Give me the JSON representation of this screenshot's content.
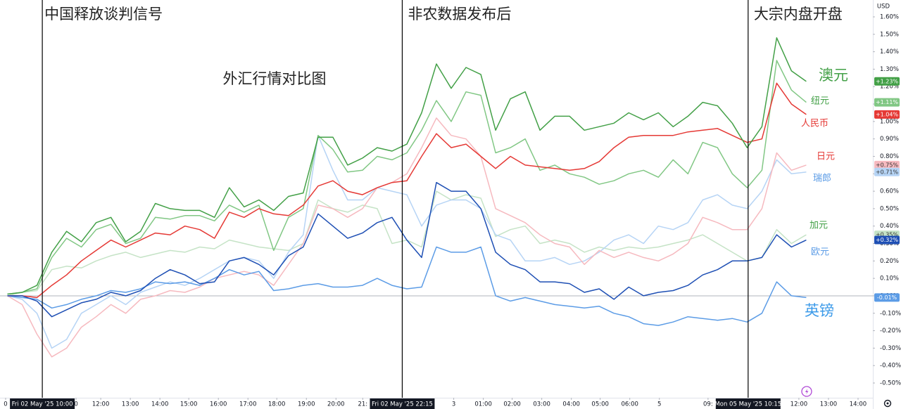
{
  "chart_data": {
    "type": "line",
    "title": "外汇行情对比图",
    "y_unit": "USD",
    "xlim": [
      -0.5,
      58.5
    ],
    "ylim": [
      -0.55,
      1.65
    ],
    "yticks": [
      {
        "value": 1.6,
        "label": "1.60%"
      },
      {
        "value": 1.5,
        "label": "1.50%"
      },
      {
        "value": 1.4,
        "label": "1.40%"
      },
      {
        "value": 1.3,
        "label": "1.30%"
      },
      {
        "value": 1.2,
        "label": "1.20%"
      },
      {
        "value": 1.1,
        "label": "1.10%"
      },
      {
        "value": 1.0,
        "label": "1.00%"
      },
      {
        "value": 0.9,
        "label": "0.90%"
      },
      {
        "value": 0.8,
        "label": "0.80%"
      },
      {
        "value": 0.7,
        "label": "0.70%"
      },
      {
        "value": 0.6,
        "label": "0.60%"
      },
      {
        "value": 0.5,
        "label": "0.50%"
      },
      {
        "value": 0.4,
        "label": "0.40%"
      },
      {
        "value": 0.3,
        "label": "0.30%"
      },
      {
        "value": 0.2,
        "label": "0.20%"
      },
      {
        "value": 0.1,
        "label": "0.10%"
      },
      {
        "value": 0,
        "label": "0.00%"
      },
      {
        "value": -0.1,
        "label": "-0.10%"
      },
      {
        "value": -0.2,
        "label": "-0.20%"
      },
      {
        "value": -0.3,
        "label": "-0.30%"
      },
      {
        "value": -0.4,
        "label": "-0.40%"
      },
      {
        "value": -0.5,
        "label": "-0.50%"
      }
    ],
    "xticks": [
      {
        "value": -0.12,
        "label": "0"
      },
      {
        "value": 4.64,
        "label": "0"
      },
      {
        "value": 6.31,
        "label": "12:00"
      },
      {
        "value": 8.31,
        "label": "13:00"
      },
      {
        "value": 10.31,
        "label": "14:00"
      },
      {
        "value": 12.26,
        "label": "15:00"
      },
      {
        "value": 14.26,
        "label": "16:00"
      },
      {
        "value": 16.26,
        "label": "17:00"
      },
      {
        "value": 18.21,
        "label": "18:00"
      },
      {
        "value": 20.21,
        "label": "19:00"
      },
      {
        "value": 22.21,
        "label": "20:00"
      },
      {
        "value": 24.02,
        "label": "21:"
      },
      {
        "value": 30.17,
        "label": "3"
      },
      {
        "value": 32.17,
        "label": "01:00"
      },
      {
        "value": 34.12,
        "label": "02:00"
      },
      {
        "value": 36.12,
        "label": "03:00"
      },
      {
        "value": 38.12,
        "label": "04:00"
      },
      {
        "value": 40.07,
        "label": "05:00"
      },
      {
        "value": 42.07,
        "label": "06:00"
      },
      {
        "value": 44.07,
        "label": "5"
      },
      {
        "value": 47.36,
        "label": "09:"
      },
      {
        "value": 53.5,
        "label": "12:00"
      },
      {
        "value": 55.5,
        "label": "13:00"
      },
      {
        "value": 57.5,
        "label": "14:00"
      }
    ],
    "events": [
      {
        "x": 2.36,
        "label": "中国释放谈判信号",
        "time": "Fri 02 May '25   10:00"
      },
      {
        "x": 26.69,
        "label": "非农数据发布后",
        "time": "Fri 02 May '25   22:15"
      },
      {
        "x": 50.07,
        "label": "大宗内盘开盘",
        "time": "Mon 05 May '25   10:15"
      }
    ],
    "series": [
      {
        "name": "澳元",
        "color": "#43a047",
        "last_label": "+1.23%",
        "values": [
          0.01,
          0.02,
          0.06,
          0.25,
          0.37,
          0.31,
          0.42,
          0.45,
          0.31,
          0.37,
          0.53,
          0.5,
          0.49,
          0.49,
          0.45,
          0.62,
          0.51,
          0.55,
          0.49,
          0.57,
          0.59,
          0.91,
          0.91,
          0.75,
          0.79,
          0.85,
          0.83,
          0.87,
          1.05,
          1.33,
          1.19,
          1.31,
          1.27,
          0.95,
          1.13,
          1.17,
          0.95,
          1.03,
          1.03,
          0.95,
          0.97,
          0.99,
          1.05,
          1.01,
          1.05,
          0.97,
          1.03,
          1.11,
          1.09,
          0.99,
          0.85,
          0.97,
          1.48,
          1.29,
          1.23
        ]
      },
      {
        "name": "纽元",
        "color": "#81c784",
        "last_label": "+1.11%",
        "values": [
          0.01,
          0.02,
          0.04,
          0.22,
          0.33,
          0.28,
          0.38,
          0.41,
          0.3,
          0.33,
          0.45,
          0.44,
          0.46,
          0.46,
          0.43,
          0.52,
          0.48,
          0.52,
          0.26,
          0.45,
          0.5,
          0.92,
          0.84,
          0.71,
          0.72,
          0.8,
          0.78,
          0.82,
          0.95,
          1.12,
          1.0,
          1.17,
          1.15,
          0.82,
          0.85,
          0.9,
          0.72,
          0.75,
          0.7,
          0.68,
          0.64,
          0.66,
          0.7,
          0.72,
          0.68,
          0.78,
          0.7,
          0.88,
          0.85,
          0.7,
          0.62,
          0.72,
          1.35,
          1.18,
          1.11
        ]
      },
      {
        "name": "人民币",
        "color": "#e53935",
        "last_label": "+1.04%",
        "values": [
          0.0,
          0.0,
          -0.01,
          0.06,
          0.12,
          0.2,
          0.26,
          0.32,
          0.28,
          0.32,
          0.36,
          0.35,
          0.4,
          0.38,
          0.33,
          0.48,
          0.45,
          0.5,
          0.47,
          0.46,
          0.52,
          0.63,
          0.66,
          0.6,
          0.58,
          0.62,
          0.65,
          0.66,
          0.8,
          0.93,
          0.85,
          0.87,
          0.8,
          0.73,
          0.8,
          0.75,
          0.74,
          0.73,
          0.72,
          0.73,
          0.77,
          0.85,
          0.91,
          0.92,
          0.92,
          0.92,
          0.94,
          0.95,
          0.96,
          0.92,
          0.88,
          0.9,
          1.22,
          1.1,
          1.04
        ]
      },
      {
        "name": "日元",
        "color": "#f6b9bf",
        "last_label": "+0.75%",
        "values": [
          0.0,
          -0.05,
          -0.22,
          -0.35,
          -0.3,
          -0.18,
          -0.12,
          -0.05,
          -0.1,
          -0.02,
          0.0,
          0.03,
          0.02,
          0.05,
          0.1,
          0.12,
          0.14,
          0.12,
          0.06,
          0.18,
          0.3,
          0.52,
          0.5,
          0.45,
          0.5,
          0.62,
          0.65,
          0.7,
          0.85,
          1.02,
          0.92,
          0.9,
          0.8,
          0.5,
          0.46,
          0.42,
          0.35,
          0.3,
          0.28,
          0.18,
          0.26,
          0.22,
          0.25,
          0.22,
          0.2,
          0.24,
          0.3,
          0.45,
          0.42,
          0.38,
          0.38,
          0.5,
          0.82,
          0.72,
          0.75
        ]
      },
      {
        "name": "瑞郎",
        "color": "#b6d4f5",
        "last_label": "+0.71%",
        "values": [
          0.0,
          -0.02,
          -0.1,
          -0.3,
          -0.25,
          -0.1,
          -0.05,
          0.0,
          -0.05,
          0.02,
          0.05,
          0.08,
          0.06,
          0.1,
          0.15,
          0.2,
          0.22,
          0.2,
          0.1,
          0.25,
          0.35,
          0.92,
          0.72,
          0.55,
          0.55,
          0.62,
          0.6,
          0.58,
          0.4,
          0.52,
          0.55,
          0.55,
          0.5,
          0.35,
          0.32,
          0.2,
          0.2,
          0.22,
          0.18,
          0.2,
          0.25,
          0.32,
          0.35,
          0.3,
          0.4,
          0.38,
          0.42,
          0.55,
          0.58,
          0.52,
          0.5,
          0.6,
          0.78,
          0.7,
          0.71
        ]
      },
      {
        "name": "加元",
        "color": "#c5e3c6",
        "last_label": "+0.35%",
        "values": [
          0.0,
          0.02,
          0.03,
          0.15,
          0.17,
          0.16,
          0.2,
          0.23,
          0.25,
          0.22,
          0.24,
          0.26,
          0.25,
          0.28,
          0.27,
          0.32,
          0.3,
          0.28,
          0.27,
          0.26,
          0.3,
          0.55,
          0.5,
          0.48,
          0.52,
          0.5,
          0.3,
          0.32,
          0.28,
          0.6,
          0.55,
          0.58,
          0.56,
          0.34,
          0.38,
          0.4,
          0.3,
          0.32,
          0.3,
          0.25,
          0.28,
          0.26,
          0.28,
          0.27,
          0.28,
          0.3,
          0.32,
          0.35,
          0.3,
          0.25,
          0.2,
          0.22,
          0.38,
          0.3,
          0.35
        ]
      },
      {
        "name": "欧元",
        "color": "#1e4fb4",
        "last_label": "+0.32%",
        "values": [
          0.0,
          0.0,
          -0.03,
          -0.12,
          -0.08,
          -0.04,
          -0.02,
          0.02,
          0.0,
          0.03,
          0.1,
          0.15,
          0.12,
          0.07,
          0.08,
          0.2,
          0.22,
          0.18,
          0.12,
          0.23,
          0.28,
          0.47,
          0.4,
          0.33,
          0.36,
          0.42,
          0.45,
          0.32,
          0.22,
          0.65,
          0.6,
          0.6,
          0.5,
          0.25,
          0.18,
          0.15,
          0.08,
          0.08,
          0.07,
          0.02,
          0.04,
          -0.02,
          0.05,
          0.0,
          0.02,
          0.03,
          0.06,
          0.12,
          0.15,
          0.2,
          0.2,
          0.22,
          0.35,
          0.28,
          0.32
        ]
      },
      {
        "name": "英镑",
        "color": "#5c9ce6",
        "last_label": "-0.01%",
        "values": [
          0.0,
          -0.01,
          -0.02,
          -0.07,
          -0.05,
          -0.02,
          0.0,
          0.03,
          0.02,
          0.04,
          0.08,
          0.07,
          0.08,
          0.06,
          0.1,
          0.15,
          0.12,
          0.14,
          0.03,
          0.04,
          0.06,
          0.07,
          0.05,
          0.05,
          0.06,
          0.1,
          0.06,
          0.04,
          0.05,
          0.28,
          0.25,
          0.25,
          0.28,
          0.0,
          -0.03,
          -0.01,
          -0.03,
          -0.05,
          -0.06,
          -0.07,
          -0.06,
          -0.1,
          -0.12,
          -0.16,
          -0.17,
          -0.15,
          -0.12,
          -0.13,
          -0.14,
          -0.13,
          -0.15,
          -0.1,
          0.08,
          0.0,
          -0.01
        ]
      }
    ]
  }
}
